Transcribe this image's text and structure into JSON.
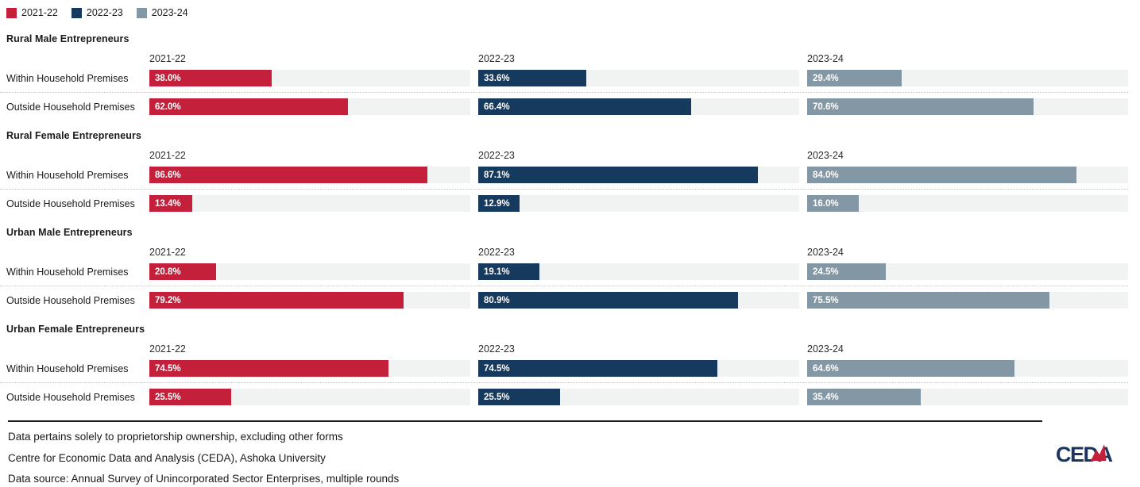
{
  "colors": {
    "red": "#c5203b",
    "navy": "#16395e",
    "gray": "#8397a5",
    "track": "#f1f2f2",
    "rule": "#1a1a1a"
  },
  "legend": [
    {
      "label": "2021-22",
      "color": "#c5203b"
    },
    {
      "label": "2022-23",
      "color": "#16395e"
    },
    {
      "label": "2023-24",
      "color": "#8397a5"
    }
  ],
  "chart_data": {
    "type": "bar",
    "orientation": "horizontal",
    "unit": "%",
    "xlim": [
      0,
      100
    ],
    "grid": false,
    "legend_position": "top-left",
    "value_label_format": "{value}%",
    "years": [
      "2021-22",
      "2022-23",
      "2023-24"
    ],
    "categories": [
      "Within Household Premises",
      "Outside Household Premises"
    ],
    "groups": [
      {
        "title": "Rural Male Entrepreneurs",
        "series": [
          {
            "name": "2021-22",
            "color": "#c5203b",
            "values": [
              38.0,
              62.0
            ]
          },
          {
            "name": "2022-23",
            "color": "#16395e",
            "values": [
              33.6,
              66.4
            ]
          },
          {
            "name": "2023-24",
            "color": "#8397a5",
            "values": [
              29.4,
              70.6
            ]
          }
        ]
      },
      {
        "title": "Rural Female Entrepreneurs",
        "series": [
          {
            "name": "2021-22",
            "color": "#c5203b",
            "values": [
              86.6,
              13.4
            ]
          },
          {
            "name": "2022-23",
            "color": "#16395e",
            "values": [
              87.1,
              12.9
            ]
          },
          {
            "name": "2023-24",
            "color": "#8397a5",
            "values": [
              84.0,
              16.0
            ]
          }
        ]
      },
      {
        "title": "Urban Male Entrepreneurs",
        "series": [
          {
            "name": "2021-22",
            "color": "#c5203b",
            "values": [
              20.8,
              79.2
            ]
          },
          {
            "name": "2022-23",
            "color": "#16395e",
            "values": [
              19.1,
              80.9
            ]
          },
          {
            "name": "2023-24",
            "color": "#8397a5",
            "values": [
              24.5,
              75.5
            ]
          }
        ]
      },
      {
        "title": "Urban Female Entrepreneurs",
        "series": [
          {
            "name": "2021-22",
            "color": "#c5203b",
            "values": [
              74.5,
              25.5
            ]
          },
          {
            "name": "2022-23",
            "color": "#16395e",
            "values": [
              74.5,
              25.5
            ]
          },
          {
            "name": "2023-24",
            "color": "#8397a5",
            "values": [
              64.6,
              35.4
            ]
          }
        ]
      }
    ]
  },
  "footer": {
    "notes": [
      "Data pertains solely to proprietorship ownership, excluding other forms",
      "Centre for Economic Data and Analysis (CEDA), Ashoka University",
      "Data source: Annual Survey of Unincorporated Sector Enterprises, multiple rounds"
    ],
    "logo_text": "CEDA"
  }
}
